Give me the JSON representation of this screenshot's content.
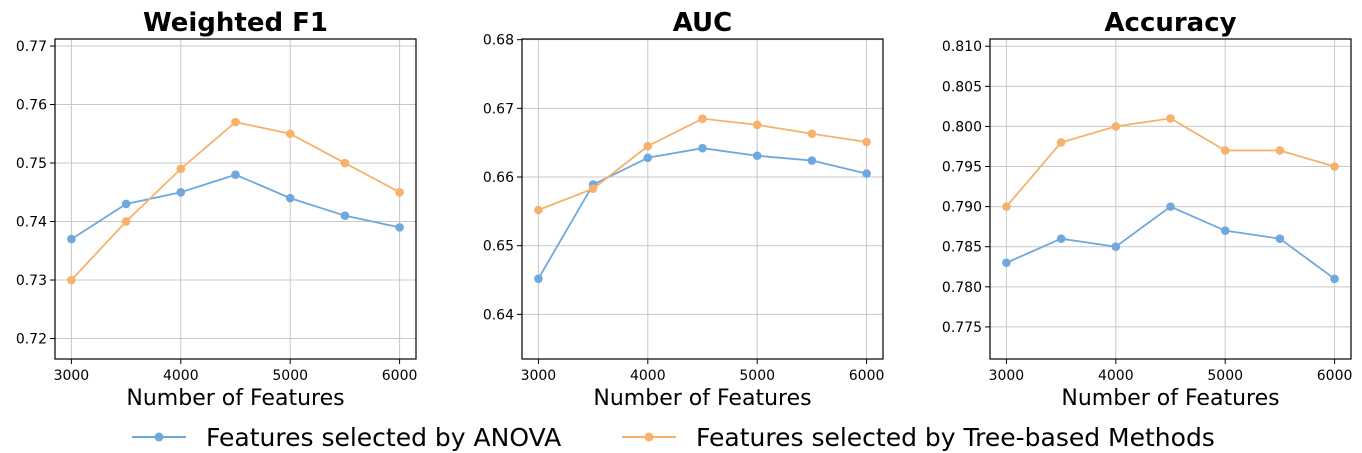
{
  "chart_data": [
    {
      "type": "line",
      "title": "Weighted F1",
      "xlabel": "Number of Features",
      "ylabel": "",
      "x": [
        3000,
        3500,
        4000,
        4500,
        5000,
        5500,
        6000
      ],
      "xlim": [
        2850,
        6150
      ],
      "ylim": [
        0.7165,
        0.7712
      ],
      "xticks": [
        3000,
        4000,
        5000,
        6000
      ],
      "yticks": [
        0.72,
        0.73,
        0.74,
        0.75,
        0.76,
        0.77
      ],
      "xtick_labels": [
        "3000",
        "4000",
        "5000",
        "6000"
      ],
      "ytick_labels": [
        "0.72",
        "0.73",
        "0.74",
        "0.75",
        "0.76",
        "0.77"
      ],
      "grid": true,
      "series": [
        {
          "name": "Features selected by ANOVA",
          "color": "#6fa8dc",
          "values": [
            0.737,
            0.743,
            0.745,
            0.748,
            0.744,
            0.741,
            0.739
          ]
        },
        {
          "name": "Features selected by Tree-based Methods",
          "color": "#f6b26b",
          "values": [
            0.73,
            0.74,
            0.749,
            0.757,
            0.755,
            0.75,
            0.745
          ]
        }
      ]
    },
    {
      "type": "line",
      "title": "AUC",
      "xlabel": "Number of Features",
      "ylabel": "",
      "x": [
        3000,
        3500,
        4000,
        4500,
        5000,
        5500,
        6000
      ],
      "xlim": [
        2850,
        6150
      ],
      "ylim": [
        0.6335,
        0.6801
      ],
      "xticks": [
        3000,
        4000,
        5000,
        6000
      ],
      "yticks": [
        0.64,
        0.65,
        0.66,
        0.67,
        0.68
      ],
      "xtick_labels": [
        "3000",
        "4000",
        "5000",
        "6000"
      ],
      "ytick_labels": [
        "0.64",
        "0.65",
        "0.66",
        "0.67",
        "0.68"
      ],
      "grid": true,
      "series": [
        {
          "name": "Features selected by ANOVA",
          "color": "#6fa8dc",
          "values": [
            0.6452,
            0.6589,
            0.6628,
            0.6642,
            0.6631,
            0.6624,
            0.6605
          ]
        },
        {
          "name": "Features selected by Tree-based Methods",
          "color": "#f6b26b",
          "values": [
            0.6552,
            0.6583,
            0.6645,
            0.6685,
            0.6676,
            0.6663,
            0.6651
          ]
        }
      ]
    },
    {
      "type": "line",
      "title": "Accuracy",
      "xlabel": "Number of Features",
      "ylabel": "",
      "x": [
        3000,
        3500,
        4000,
        4500,
        5000,
        5500,
        6000
      ],
      "xlim": [
        2850,
        6150
      ],
      "ylim": [
        0.771,
        0.8109
      ],
      "xticks": [
        3000,
        4000,
        5000,
        6000
      ],
      "yticks": [
        0.775,
        0.78,
        0.785,
        0.79,
        0.795,
        0.8,
        0.805,
        0.81
      ],
      "xtick_labels": [
        "3000",
        "4000",
        "5000",
        "6000"
      ],
      "ytick_labels": [
        "0.775",
        "0.780",
        "0.785",
        "0.790",
        "0.795",
        "0.800",
        "0.805",
        "0.810"
      ],
      "grid": true,
      "series": [
        {
          "name": "Features selected by ANOVA",
          "color": "#6fa8dc",
          "values": [
            0.783,
            0.786,
            0.785,
            0.79,
            0.787,
            0.786,
            0.781
          ]
        },
        {
          "name": "Features selected by Tree-based Methods",
          "color": "#f6b26b",
          "values": [
            0.79,
            0.798,
            0.8,
            0.801,
            0.797,
            0.797,
            0.795
          ]
        }
      ]
    }
  ],
  "legend": {
    "placement": "bottom-center",
    "items": [
      {
        "label": "Features selected by ANOVA",
        "color": "#6fa8dc"
      },
      {
        "label": "Features selected by Tree-based Methods",
        "color": "#f6b26b"
      }
    ]
  }
}
